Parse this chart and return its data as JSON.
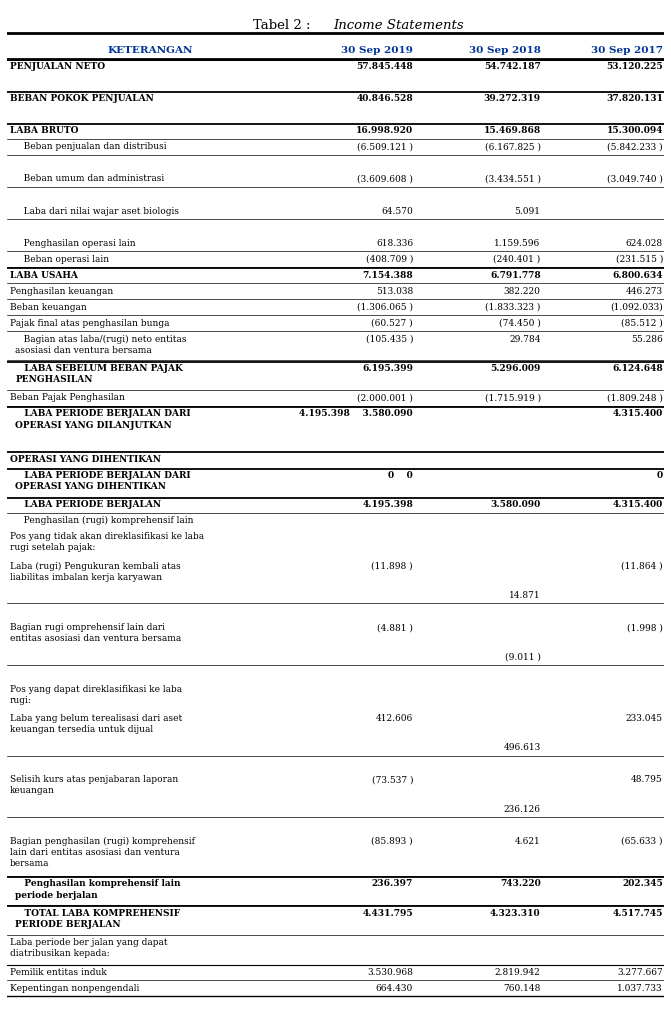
{
  "title_normal": "Tabel 2 : ",
  "title_italic": "Income Statements",
  "headers": [
    "KETERANGAN",
    "30 Sep 2019",
    "30 Sep 2018",
    "30 Sep 2017"
  ],
  "header_color": "#003399",
  "rows": [
    {
      "text": "PENJUALAN NETO",
      "v1": "57.845.448",
      "v2": "54.742.187",
      "v3": "53.120.225",
      "bold": true,
      "top_thick": true,
      "bot": false,
      "indent": 0,
      "nl": 1
    },
    {
      "text": "",
      "v1": "",
      "v2": "",
      "v3": "",
      "bold": false,
      "top_thick": false,
      "bot": false,
      "indent": 0,
      "nl": 1
    },
    {
      "text": "BEBAN POKOK PENJUALAN",
      "v1": "40.846.528",
      "v2": "39.272.319",
      "v3": "37.820.131",
      "bold": true,
      "top_thick": true,
      "bot": false,
      "indent": 0,
      "nl": 1
    },
    {
      "text": "",
      "v1": "",
      "v2": "",
      "v3": "",
      "bold": false,
      "top_thick": false,
      "bot": false,
      "indent": 0,
      "nl": 1
    },
    {
      "text": "LABA BRUTO",
      "v1": "16.998.920",
      "v2": "15.469.868",
      "v3": "15.300.094",
      "bold": true,
      "top_thick": true,
      "bot": true,
      "indent": 0,
      "nl": 1
    },
    {
      "text": "   Beban penjualan dan distribusi",
      "v1": "(6.509.121 )",
      "v2": "(6.167.825 )",
      "v3": "(5.842.233 )",
      "bold": false,
      "top_thick": false,
      "bot": true,
      "indent": 1,
      "nl": 1
    },
    {
      "text": "",
      "v1": "",
      "v2": "",
      "v3": "",
      "bold": false,
      "top_thick": false,
      "bot": false,
      "indent": 0,
      "nl": 1
    },
    {
      "text": "   Beban umum dan administrasi",
      "v1": "(3.609.608 )",
      "v2": "(3.434.551 )",
      "v3": "(3.049.740 )",
      "bold": false,
      "top_thick": false,
      "bot": true,
      "indent": 1,
      "nl": 1
    },
    {
      "text": "",
      "v1": "",
      "v2": "",
      "v3": "",
      "bold": false,
      "top_thick": false,
      "bot": false,
      "indent": 0,
      "nl": 1
    },
    {
      "text": "   Laba dari nilai wajar aset biologis",
      "v1": "64.570",
      "v2": "5.091",
      "v3": "",
      "bold": false,
      "top_thick": false,
      "bot": true,
      "indent": 1,
      "nl": 1
    },
    {
      "text": "",
      "v1": "",
      "v2": "",
      "v3": "",
      "bold": false,
      "top_thick": false,
      "bot": false,
      "indent": 0,
      "nl": 1
    },
    {
      "text": "   Penghasilan operasi lain",
      "v1": "618.336",
      "v2": "1.159.596",
      "v3": "624.028",
      "bold": false,
      "top_thick": false,
      "bot": true,
      "indent": 1,
      "nl": 1
    },
    {
      "text": "   Beban operasi lain",
      "v1": "(408.709 )",
      "v2": "(240.401 )",
      "v3": "(231.515 )",
      "bold": false,
      "top_thick": false,
      "bot": true,
      "indent": 1,
      "nl": 1
    },
    {
      "text": "LABA USAHA",
      "v1": "7.154.388",
      "v2": "6.791.778",
      "v3": "6.800.634",
      "bold": true,
      "top_thick": true,
      "bot": true,
      "indent": 0,
      "nl": 1
    },
    {
      "text": "Penghasilan keuangan",
      "v1": "513.038",
      "v2": "382.220",
      "v3": "446.273",
      "bold": false,
      "top_thick": false,
      "bot": true,
      "indent": 0,
      "nl": 1
    },
    {
      "text": "Beban keuangan",
      "v1": "(1.306.065 )",
      "v2": "(1.833.323 )",
      "v3": "(1.092.033)",
      "bold": false,
      "top_thick": false,
      "bot": true,
      "indent": 0,
      "nl": 1
    },
    {
      "text": "Pajak final atas penghasilan bunga",
      "v1": "(60.527 )",
      "v2": "(74.450 )",
      "v3": "(85.512 )",
      "bold": false,
      "top_thick": false,
      "bot": true,
      "indent": 0,
      "nl": 1
    },
    {
      "text": "   Bagian atas laba/(rugi) neto entitas\nasosiasi dan ventura bersama",
      "v1": "(105.435 )",
      "v2": "29.784",
      "v3": "55.286",
      "bold": false,
      "top_thick": false,
      "bot": true,
      "indent": 1,
      "nl": 2
    },
    {
      "text": "   LABA SEBELUM BEBAN PAJAK\nPENGHASILAN",
      "v1": "6.195.399",
      "v2": "5.296.009",
      "v3": "6.124.648",
      "bold": true,
      "top_thick": true,
      "bot": true,
      "indent": 1,
      "nl": 2
    },
    {
      "text": "Beban Pajak Penghasilan",
      "v1": "(2.000.001 )",
      "v2": "(1.715.919 )",
      "v3": "(1.809.248 )",
      "bold": false,
      "top_thick": false,
      "bot": true,
      "indent": 0,
      "nl": 1
    },
    {
      "text": "   LABA PERIODE BERJALAN DARI\nOPERASI YANG DILANJUTKAN",
      "v1": "4.195.398    3.580.090",
      "v2": "",
      "v3": "4.315.400",
      "bold": true,
      "top_thick": true,
      "bot": false,
      "indent": 1,
      "nl": 2
    },
    {
      "text": "",
      "v1": "",
      "v2": "",
      "v3": "",
      "bold": false,
      "top_thick": false,
      "bot": false,
      "indent": 0,
      "nl": 1
    },
    {
      "text": "OPERASI YANG DIHENTIKAN",
      "v1": "",
      "v2": "",
      "v3": "",
      "bold": true,
      "top_thick": true,
      "bot": false,
      "indent": 0,
      "nl": 1
    },
    {
      "text": "   LABA PERIODE BERJALAN DARI\nOPERASI YANG DIHENTIKAN",
      "v1": "0    0",
      "v2": "",
      "v3": "0",
      "bold": true,
      "top_thick": true,
      "bot": false,
      "indent": 1,
      "nl": 2
    },
    {
      "text": "   LABA PERIODE BERJALAN",
      "v1": "4.195.398",
      "v2": "3.580.090",
      "v3": "4.315.400",
      "bold": true,
      "top_thick": true,
      "bot": true,
      "indent": 1,
      "nl": 1
    },
    {
      "text": "   Penghasilan (rugi) komprehensif lain",
      "v1": "",
      "v2": "",
      "v3": "",
      "bold": false,
      "top_thick": false,
      "bot": false,
      "indent": 1,
      "nl": 1
    },
    {
      "text": "Pos yang tidak akan direklasifikasi ke laba\nrugi setelah pajak:",
      "v1": "",
      "v2": "",
      "v3": "",
      "bold": false,
      "top_thick": false,
      "bot": false,
      "indent": 0,
      "nl": 2
    },
    {
      "text": "Laba (rugi) Pengukuran kembali atas\nliabilitas imbalan kerja karyawan",
      "v1": "(11.898 )",
      "v2": "",
      "v3": "(11.864 )",
      "bold": false,
      "top_thick": false,
      "bot": false,
      "indent": 0,
      "nl": 2
    },
    {
      "text": "",
      "v1": "",
      "v2": "14.871",
      "v3": "",
      "bold": false,
      "top_thick": false,
      "bot": true,
      "indent": 0,
      "nl": 1
    },
    {
      "text": "",
      "v1": "",
      "v2": "",
      "v3": "",
      "bold": false,
      "top_thick": false,
      "bot": false,
      "indent": 0,
      "nl": 1
    },
    {
      "text": "Bagian rugi omprehensif lain dari\nentitas asosiasi dan ventura bersama",
      "v1": "(4.881 )",
      "v2": "",
      "v3": "(1.998 )",
      "bold": false,
      "top_thick": false,
      "bot": false,
      "indent": 0,
      "nl": 2
    },
    {
      "text": "",
      "v1": "",
      "v2": "(9.011 )",
      "v3": "",
      "bold": false,
      "top_thick": false,
      "bot": true,
      "indent": 0,
      "nl": 1
    },
    {
      "text": "",
      "v1": "",
      "v2": "",
      "v3": "",
      "bold": false,
      "top_thick": false,
      "bot": false,
      "indent": 0,
      "nl": 1
    },
    {
      "text": "Pos yang dapat direklasifikasi ke laba\nrugi:",
      "v1": "",
      "v2": "",
      "v3": "",
      "bold": false,
      "top_thick": false,
      "bot": false,
      "indent": 0,
      "nl": 2
    },
    {
      "text": "Laba yang belum terealisasi dari aset\nkeuangan tersedia untuk dijual",
      "v1": "412.606",
      "v2": "",
      "v3": "233.045",
      "bold": false,
      "top_thick": false,
      "bot": false,
      "indent": 0,
      "nl": 2
    },
    {
      "text": "",
      "v1": "",
      "v2": "496.613",
      "v3": "",
      "bold": false,
      "top_thick": false,
      "bot": true,
      "indent": 0,
      "nl": 1
    },
    {
      "text": "",
      "v1": "",
      "v2": "",
      "v3": "",
      "bold": false,
      "top_thick": false,
      "bot": false,
      "indent": 0,
      "nl": 1
    },
    {
      "text": "Selisih kurs atas penjabaran laporan\nkeuangan",
      "v1": "(73.537 )",
      "v2": "",
      "v3": "48.795",
      "bold": false,
      "top_thick": false,
      "bot": false,
      "indent": 0,
      "nl": 2
    },
    {
      "text": "",
      "v1": "",
      "v2": "236.126",
      "v3": "",
      "bold": false,
      "top_thick": false,
      "bot": true,
      "indent": 0,
      "nl": 1
    },
    {
      "text": "",
      "v1": "",
      "v2": "",
      "v3": "",
      "bold": false,
      "top_thick": false,
      "bot": false,
      "indent": 0,
      "nl": 1
    },
    {
      "text": "Bagian penghasilan (rugi) komprehensif\nlain dari entitas asosiasi dan ventura\nbersama",
      "v1": "(85.893 )",
      "v2": "4.621",
      "v3": "(65.633 )",
      "bold": false,
      "top_thick": false,
      "bot": true,
      "indent": 0,
      "nl": 3
    },
    {
      "text": "   Penghasilan komprehensif lain\nperiode berjalan",
      "v1": "236.397",
      "v2": "743.220",
      "v3": "202.345",
      "bold": true,
      "top_thick": true,
      "bot": true,
      "indent": 1,
      "nl": 2
    },
    {
      "text": "   TOTAL LABA KOMPREHENSIF\nPERIODE BERJALAN",
      "v1": "4.431.795",
      "v2": "4.323.310",
      "v3": "4.517.745",
      "bold": true,
      "top_thick": true,
      "bot": true,
      "indent": 1,
      "nl": 2
    },
    {
      "text": "Laba periode ber jalan yang dapat\ndiatribusikan kepada:",
      "v1": "",
      "v2": "",
      "v3": "",
      "bold": false,
      "top_thick": false,
      "bot": false,
      "indent": 0,
      "nl": 2
    },
    {
      "text": "Pemilik entitas induk",
      "v1": "3.530.968",
      "v2": "2.819.942",
      "v3": "3.277.667",
      "bold": false,
      "top_thick": true,
      "bot": true,
      "indent": 0,
      "nl": 1
    },
    {
      "text": "Kepentingan nonpengendali",
      "v1": "664.430",
      "v2": "760.148",
      "v3": "1.037.733",
      "bold": false,
      "top_thick": false,
      "bot": true,
      "indent": 0,
      "nl": 1
    }
  ]
}
